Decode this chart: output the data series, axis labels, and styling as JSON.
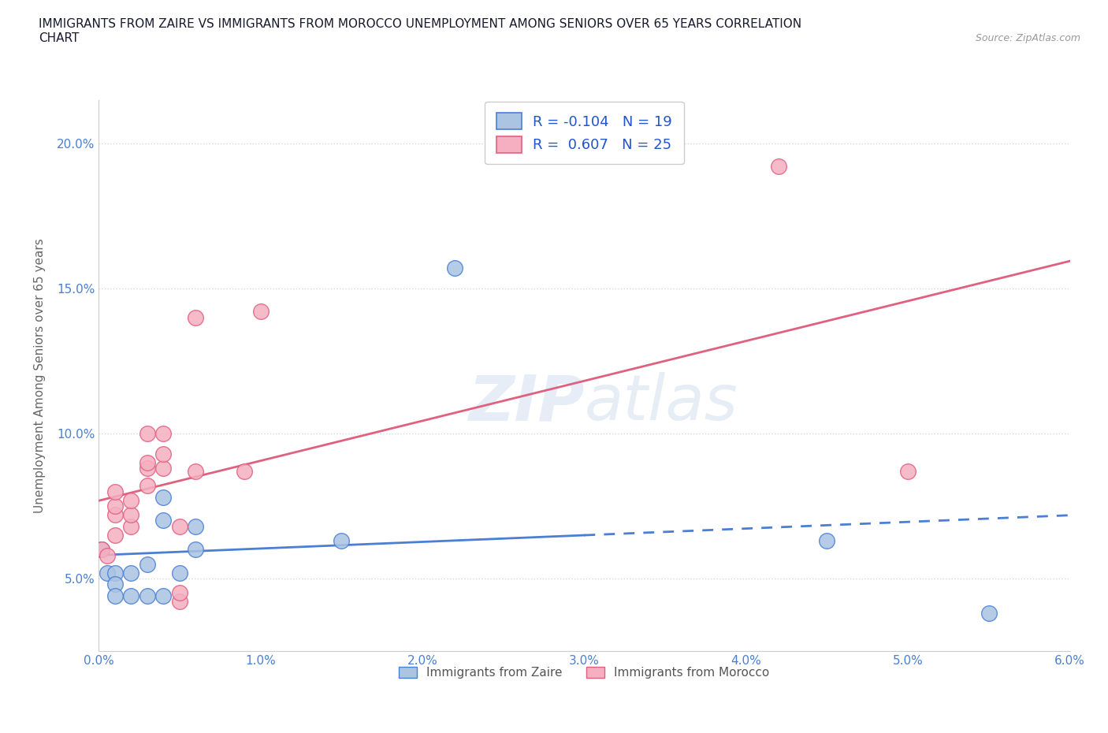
{
  "title": "IMMIGRANTS FROM ZAIRE VS IMMIGRANTS FROM MOROCCO UNEMPLOYMENT AMONG SENIORS OVER 65 YEARS CORRELATION\nCHART",
  "source_text": "Source: ZipAtlas.com",
  "ylabel": "Unemployment Among Seniors over 65 years",
  "watermark": "ZIPatlas",
  "xlim": [
    0.0,
    0.06
  ],
  "ylim": [
    0.025,
    0.215
  ],
  "xticks": [
    0.0,
    0.01,
    0.02,
    0.03,
    0.04,
    0.05,
    0.06
  ],
  "yticks": [
    0.05,
    0.1,
    0.15,
    0.2
  ],
  "xtick_labels": [
    "0.0%",
    "1.0%",
    "2.0%",
    "3.0%",
    "4.0%",
    "5.0%",
    "6.0%"
  ],
  "ytick_labels": [
    "5.0%",
    "10.0%",
    "15.0%",
    "20.0%"
  ],
  "legend_labels": [
    "Immigrants from Zaire",
    "Immigrants from Morocco"
  ],
  "zaire_color": "#aac4e2",
  "morocco_color": "#f5afc0",
  "zaire_line_color": "#4a7fd4",
  "morocco_line_color": "#e06080",
  "zaire_R": -0.104,
  "zaire_N": 19,
  "morocco_R": 0.607,
  "morocco_N": 25,
  "zaire_scatter": [
    [
      0.0002,
      0.06
    ],
    [
      0.0005,
      0.052
    ],
    [
      0.001,
      0.052
    ],
    [
      0.001,
      0.048
    ],
    [
      0.001,
      0.044
    ],
    [
      0.002,
      0.052
    ],
    [
      0.002,
      0.044
    ],
    [
      0.003,
      0.044
    ],
    [
      0.003,
      0.055
    ],
    [
      0.004,
      0.044
    ],
    [
      0.004,
      0.07
    ],
    [
      0.004,
      0.078
    ],
    [
      0.005,
      0.052
    ],
    [
      0.006,
      0.06
    ],
    [
      0.006,
      0.068
    ],
    [
      0.015,
      0.063
    ],
    [
      0.022,
      0.157
    ],
    [
      0.045,
      0.063
    ],
    [
      0.055,
      0.038
    ]
  ],
  "morocco_scatter": [
    [
      0.0002,
      0.06
    ],
    [
      0.0005,
      0.058
    ],
    [
      0.001,
      0.065
    ],
    [
      0.001,
      0.072
    ],
    [
      0.001,
      0.075
    ],
    [
      0.001,
      0.08
    ],
    [
      0.002,
      0.068
    ],
    [
      0.002,
      0.072
    ],
    [
      0.002,
      0.077
    ],
    [
      0.003,
      0.082
    ],
    [
      0.003,
      0.088
    ],
    [
      0.003,
      0.09
    ],
    [
      0.003,
      0.1
    ],
    [
      0.004,
      0.088
    ],
    [
      0.004,
      0.093
    ],
    [
      0.004,
      0.1
    ],
    [
      0.005,
      0.042
    ],
    [
      0.005,
      0.045
    ],
    [
      0.005,
      0.068
    ],
    [
      0.006,
      0.087
    ],
    [
      0.006,
      0.14
    ],
    [
      0.009,
      0.087
    ],
    [
      0.01,
      0.142
    ],
    [
      0.042,
      0.192
    ],
    [
      0.05,
      0.087
    ]
  ],
  "background_color": "#ffffff",
  "grid_color": "#d8d8d8",
  "title_color": "#1a1a2e",
  "tick_color": "#4a7fd4",
  "ylabel_color": "#666666"
}
